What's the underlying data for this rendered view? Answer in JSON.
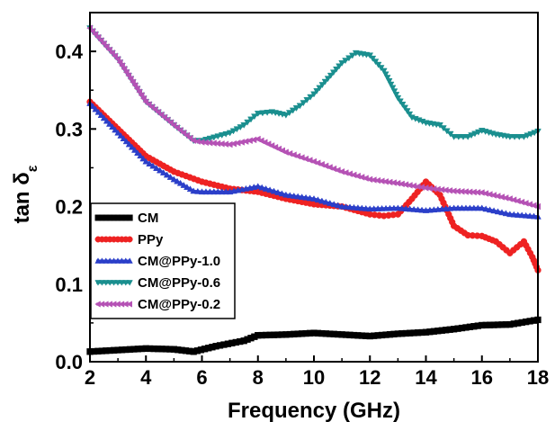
{
  "chart_data": {
    "type": "line",
    "xlabel": "Frequency (GHz)",
    "ylabel": "tan δ",
    "ylabel_sub": "ε",
    "xlim": [
      2,
      18
    ],
    "ylim": [
      0.0,
      0.45
    ],
    "xticks": [
      "2",
      "4",
      "6",
      "8",
      "10",
      "12",
      "14",
      "16",
      "18"
    ],
    "yticks": [
      "0.0",
      "0.1",
      "0.2",
      "0.3",
      "0.4"
    ],
    "legend_position": "bottom-left",
    "grid": false,
    "series": [
      {
        "name": "CM",
        "color": "#000000",
        "marker": "square",
        "points": [
          [
            2,
            0.013
          ],
          [
            3,
            0.015
          ],
          [
            4,
            0.017
          ],
          [
            5,
            0.016
          ],
          [
            5.7,
            0.013
          ],
          [
            6.5,
            0.02
          ],
          [
            7.5,
            0.027
          ],
          [
            8,
            0.034
          ],
          [
            9,
            0.035
          ],
          [
            10,
            0.037
          ],
          [
            11,
            0.035
          ],
          [
            12,
            0.033
          ],
          [
            13,
            0.036
          ],
          [
            14,
            0.038
          ],
          [
            15,
            0.042
          ],
          [
            16,
            0.047
          ],
          [
            17,
            0.048
          ],
          [
            18,
            0.054
          ]
        ]
      },
      {
        "name": "PPy",
        "color": "#ee2222",
        "marker": "circle",
        "points": [
          [
            2,
            0.335
          ],
          [
            3,
            0.3
          ],
          [
            4,
            0.265
          ],
          [
            5,
            0.245
          ],
          [
            6,
            0.232
          ],
          [
            7,
            0.223
          ],
          [
            8,
            0.219
          ],
          [
            9,
            0.21
          ],
          [
            10,
            0.203
          ],
          [
            11,
            0.2
          ],
          [
            12,
            0.19
          ],
          [
            12.5,
            0.188
          ],
          [
            13,
            0.19
          ],
          [
            13.5,
            0.21
          ],
          [
            14,
            0.232
          ],
          [
            14.5,
            0.215
          ],
          [
            15,
            0.175
          ],
          [
            15.5,
            0.163
          ],
          [
            16,
            0.162
          ],
          [
            16.5,
            0.155
          ],
          [
            17,
            0.14
          ],
          [
            17.5,
            0.155
          ],
          [
            17.8,
            0.135
          ],
          [
            18,
            0.118
          ]
        ]
      },
      {
        "name": "CM@PPy-1.0",
        "color": "#2b3fc9",
        "marker": "triangle-up",
        "points": [
          [
            2,
            0.333
          ],
          [
            3,
            0.295
          ],
          [
            4,
            0.258
          ],
          [
            5,
            0.235
          ],
          [
            5.7,
            0.22
          ],
          [
            6,
            0.219
          ],
          [
            7,
            0.219
          ],
          [
            8,
            0.226
          ],
          [
            9,
            0.215
          ],
          [
            10,
            0.21
          ],
          [
            11,
            0.2
          ],
          [
            12,
            0.197
          ],
          [
            13,
            0.198
          ],
          [
            14,
            0.195
          ],
          [
            15,
            0.198
          ],
          [
            16,
            0.198
          ],
          [
            17,
            0.19
          ],
          [
            18,
            0.187
          ]
        ]
      },
      {
        "name": "CM@PPy-0.6",
        "color": "#1a8f8f",
        "marker": "triangle-down",
        "points": [
          [
            2,
            0.43
          ],
          [
            3,
            0.39
          ],
          [
            4,
            0.335
          ],
          [
            5,
            0.305
          ],
          [
            5.7,
            0.285
          ],
          [
            6,
            0.285
          ],
          [
            7,
            0.295
          ],
          [
            7.5,
            0.305
          ],
          [
            8,
            0.32
          ],
          [
            8.5,
            0.322
          ],
          [
            9,
            0.318
          ],
          [
            9.5,
            0.33
          ],
          [
            10,
            0.345
          ],
          [
            10.5,
            0.365
          ],
          [
            11,
            0.385
          ],
          [
            11.5,
            0.398
          ],
          [
            12,
            0.395
          ],
          [
            12.5,
            0.375
          ],
          [
            13,
            0.34
          ],
          [
            13.5,
            0.315
          ],
          [
            14,
            0.308
          ],
          [
            14.5,
            0.305
          ],
          [
            15,
            0.29
          ],
          [
            15.5,
            0.29
          ],
          [
            16,
            0.298
          ],
          [
            16.5,
            0.293
          ],
          [
            17,
            0.29
          ],
          [
            17.5,
            0.29
          ],
          [
            18,
            0.297
          ]
        ]
      },
      {
        "name": "CM@PPy-0.2",
        "color": "#b552b5",
        "marker": "left-arrow",
        "points": [
          [
            2,
            0.43
          ],
          [
            3,
            0.39
          ],
          [
            4,
            0.335
          ],
          [
            5,
            0.305
          ],
          [
            5.7,
            0.285
          ],
          [
            6,
            0.283
          ],
          [
            7,
            0.28
          ],
          [
            8,
            0.287
          ],
          [
            9,
            0.27
          ],
          [
            10,
            0.258
          ],
          [
            11,
            0.245
          ],
          [
            12,
            0.235
          ],
          [
            13,
            0.23
          ],
          [
            14,
            0.224
          ],
          [
            15,
            0.22
          ],
          [
            16,
            0.218
          ],
          [
            17,
            0.21
          ],
          [
            18,
            0.2
          ]
        ]
      }
    ]
  }
}
